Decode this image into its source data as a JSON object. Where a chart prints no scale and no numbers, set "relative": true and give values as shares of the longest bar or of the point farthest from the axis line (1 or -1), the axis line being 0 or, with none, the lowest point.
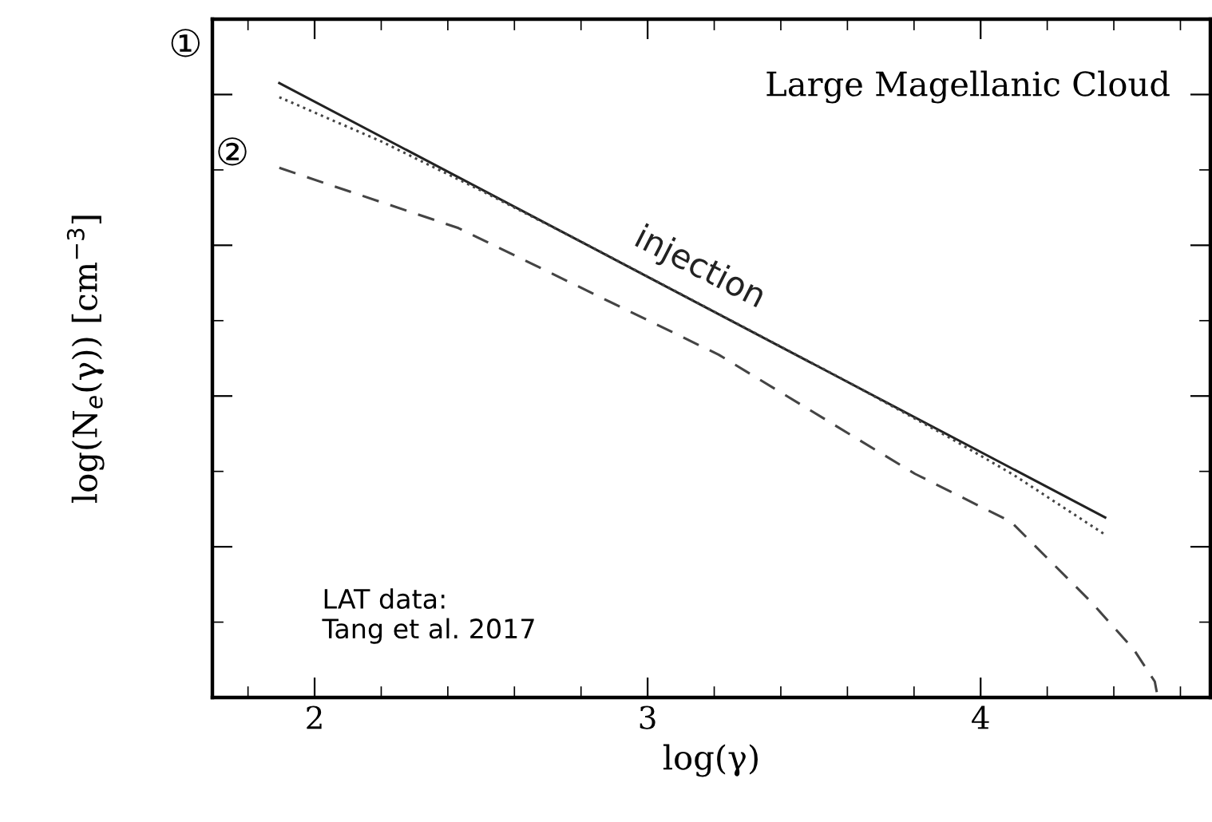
{
  "chart_data": {
    "type": "line",
    "title": "Large Magellanic Cloud",
    "xlabel": "log(γ)",
    "ylabel": "log(N$_{e}$(γ)) [cm$^{−3}$]",
    "relative": true,
    "xlim": [
      1.693,
      4.69
    ],
    "xticks": [
      2,
      3,
      4
    ],
    "grid": false,
    "legend": false,
    "marker": "none",
    "series": [
      {
        "name": "injection",
        "color": "#222222",
        "line_style": "solid",
        "x": [
          1.894,
          4.374
        ],
        "values": [
          1.0,
          0.293
        ]
      },
      {
        "color": "#444444",
        "line_style": "dotted",
        "x": [
          1.894,
          2.2,
          2.5,
          2.8,
          3.2,
          3.6,
          3.9,
          4.1,
          4.374
        ],
        "values": [
          0.977,
          0.905,
          0.825,
          0.742,
          0.628,
          0.514,
          0.425,
          0.362,
          0.265
        ]
      },
      {
        "color": "#444444",
        "line_style": "dashed",
        "x": [
          1.894,
          2.432,
          2.974,
          3.213,
          3.803,
          4.091,
          4.331,
          4.46,
          4.523,
          4.532
        ],
        "values": [
          0.862,
          0.764,
          0.621,
          0.558,
          0.364,
          0.286,
          0.156,
          0.078,
          0.026,
          0.0
        ]
      }
    ],
    "annotations": [
      "LAT data:\nTang et al. 2017",
      "①",
      "②"
    ]
  }
}
